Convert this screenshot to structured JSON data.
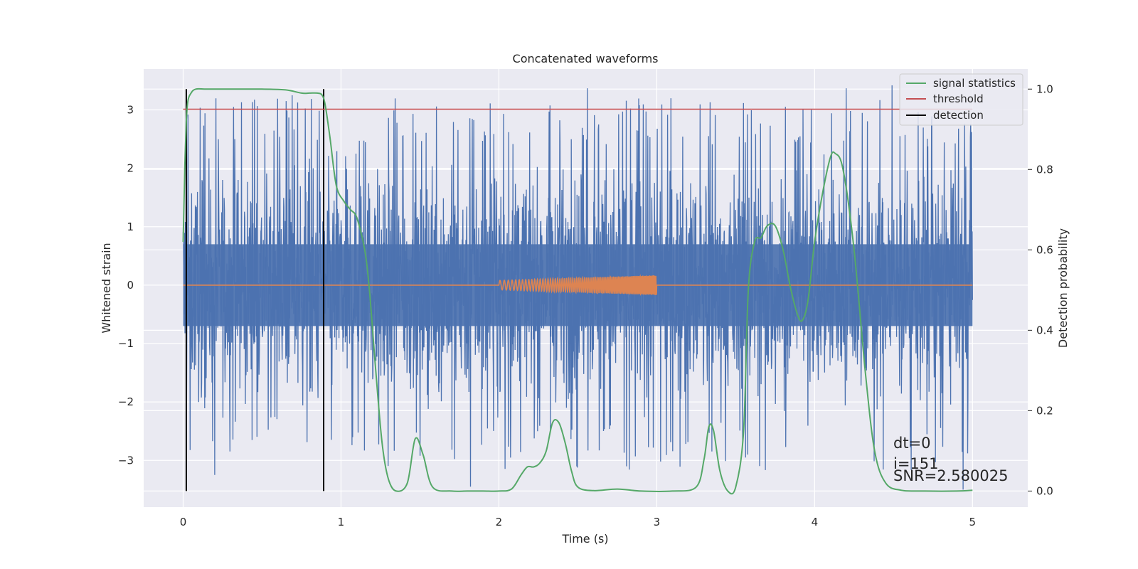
{
  "chart_data": {
    "type": "line",
    "title": "Concatenated waveforms",
    "xlabel": "Time (s)",
    "ylabel": "Whitened strain",
    "ylabel_right": "Detection probability",
    "xlim": [
      -0.25,
      5.35
    ],
    "ylim": [
      -3.8,
      3.7
    ],
    "ylim_right": [
      -0.04,
      1.05
    ],
    "x_ticks": [
      0,
      1,
      2,
      3,
      4,
      5
    ],
    "y_ticks": [
      -3,
      -2,
      -1,
      0,
      1,
      2,
      3
    ],
    "y_ticks_right": [
      0.0,
      0.2,
      0.4,
      0.6,
      0.8,
      1.0
    ],
    "x_tick_labels": [
      "0",
      "1",
      "2",
      "3",
      "4",
      "5"
    ],
    "y_tick_labels": [
      "−3",
      "−2",
      "−1",
      "0",
      "1",
      "2",
      "3"
    ],
    "y_tick_labels_right": [
      "0.0",
      "0.2",
      "0.4",
      "0.6",
      "0.8",
      "1.0"
    ],
    "grid": true,
    "legend_position": "top-right",
    "series": [
      {
        "name": "",
        "axis": "left",
        "color": "#4c72b0",
        "kind": "noise",
        "x_range": [
          0,
          5
        ],
        "envelope": [
          2.4,
          3.2
        ],
        "dense_band": [
          -0.7,
          0.7
        ],
        "peaks": [
          {
            "x": 0.32,
            "y": 3.05
          },
          {
            "x": 0.69,
            "y": 3.25
          },
          {
            "x": 2.56,
            "y": 3.37
          },
          {
            "x": 4.2,
            "y": 3.37
          },
          {
            "x": 4.49,
            "y": 3.42
          },
          {
            "x": 1.82,
            "y": -3.45
          },
          {
            "x": 0.2,
            "y": -3.25
          },
          {
            "x": 4.94,
            "y": -3.5
          }
        ]
      },
      {
        "name": "",
        "axis": "left",
        "color": "#dd8452",
        "kind": "chirp",
        "x_range": [
          0,
          5
        ],
        "chirp_start": 2.0,
        "chirp_end": 3.0,
        "amp_start": 0.08,
        "amp_end": 0.17
      },
      {
        "name": "signal statistics",
        "axis": "right",
        "color": "#55a868",
        "x": [
          0.0,
          0.01,
          0.02,
          0.03,
          0.05,
          0.08,
          0.15,
          0.3,
          0.5,
          0.65,
          0.75,
          0.8,
          0.85,
          0.88,
          0.9,
          0.93,
          0.97,
          1.02,
          1.06,
          1.1,
          1.15,
          1.18,
          1.22,
          1.26,
          1.3,
          1.35,
          1.42,
          1.47,
          1.52,
          1.58,
          1.7,
          1.8,
          1.9,
          2.0,
          2.08,
          2.14,
          2.18,
          2.22,
          2.26,
          2.3,
          2.34,
          2.38,
          2.42,
          2.46,
          2.5,
          2.6,
          2.75,
          2.9,
          3.1,
          3.25,
          3.3,
          3.33,
          3.36,
          3.4,
          3.45,
          3.5,
          3.55,
          3.58,
          3.62,
          3.66,
          3.7,
          3.75,
          3.8,
          3.85,
          3.9,
          3.93,
          3.96,
          4.0,
          4.05,
          4.1,
          4.13,
          4.18,
          4.25,
          4.32,
          4.38,
          4.45,
          4.55,
          4.7,
          4.9,
          5.0
        ],
        "y": [
          0.62,
          0.8,
          0.92,
          0.97,
          0.99,
          1.0,
          1.0,
          1.0,
          1.0,
          0.998,
          0.99,
          0.99,
          0.99,
          0.985,
          0.96,
          0.88,
          0.76,
          0.72,
          0.7,
          0.68,
          0.6,
          0.5,
          0.3,
          0.12,
          0.03,
          0.0,
          0.02,
          0.13,
          0.09,
          0.01,
          0.0,
          0.0,
          0.0,
          0.0,
          0.005,
          0.04,
          0.06,
          0.06,
          0.07,
          0.1,
          0.17,
          0.17,
          0.12,
          0.05,
          0.01,
          0.001,
          0.005,
          0.0,
          0.0,
          0.01,
          0.08,
          0.16,
          0.15,
          0.05,
          0.0,
          0.01,
          0.15,
          0.5,
          0.62,
          0.63,
          0.66,
          0.66,
          0.6,
          0.5,
          0.43,
          0.43,
          0.48,
          0.62,
          0.74,
          0.83,
          0.84,
          0.8,
          0.6,
          0.3,
          0.1,
          0.02,
          0.002,
          0.0,
          0.0,
          0.002
        ]
      },
      {
        "name": "threshold",
        "axis": "right",
        "color": "#c44e52",
        "x": [
          0,
          5
        ],
        "y": [
          0.95,
          0.95
        ]
      },
      {
        "name": "detection",
        "axis": "right",
        "color": "#000000",
        "kind": "vlines",
        "x": [
          0.02,
          0.89
        ],
        "y_range": [
          0.0,
          1.0
        ]
      }
    ],
    "annotations": [
      "dt=0",
      "i=151",
      "SNR=2.580025"
    ]
  }
}
